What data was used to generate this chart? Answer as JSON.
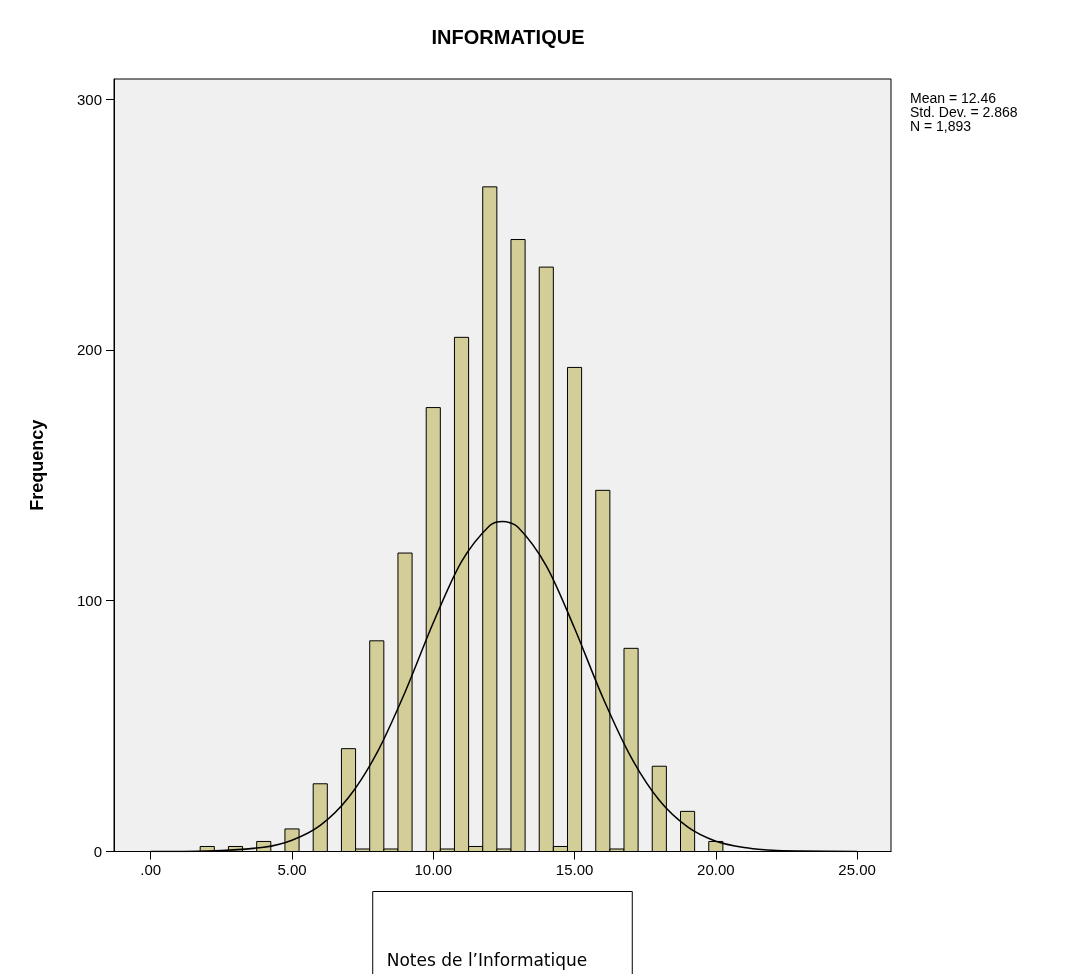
{
  "chart_data": {
    "type": "histogram",
    "title": "INFORMATIQUE",
    "xlabel": "Notes de l’Informatique",
    "ylabel": "Frequency",
    "bins": [
      1.75,
      2.25,
      2.75,
      3.25,
      3.75,
      4.25,
      4.75,
      5.25,
      5.75,
      6.25,
      6.75,
      7.25,
      7.75,
      8.25,
      8.75,
      9.25,
      9.75,
      10.25,
      10.75,
      11.25,
      11.75,
      12.25,
      12.75,
      13.25,
      13.75,
      14.25,
      14.75,
      15.25,
      15.75,
      16.25,
      16.75,
      17.25,
      17.75,
      18.25,
      18.75,
      19.25,
      19.75,
      20.25
    ],
    "values": [
      2,
      0,
      2,
      0,
      4,
      0,
      9,
      0,
      27,
      0,
      41,
      1,
      84,
      1,
      119,
      0,
      177,
      1,
      205,
      2,
      265,
      1,
      244,
      0,
      233,
      2,
      193,
      0,
      144,
      1,
      81,
      0,
      34,
      0,
      16,
      0,
      4
    ],
    "color": "#d3ce97",
    "series": [
      {
        "type": "line",
        "color": "#000000",
        "x": [
          0,
          2,
          4,
          5,
          6,
          7,
          8,
          9,
          10,
          11,
          12,
          12.46,
          13,
          14,
          15,
          16,
          17,
          18,
          19,
          20,
          21,
          22,
          23,
          25
        ],
        "values": [
          0,
          0.2,
          1.7,
          4.5,
          10.4,
          21.5,
          39.2,
          63.5,
          91.2,
          115.6,
          130,
          131.6,
          129.3,
          113.9,
          89,
          61.4,
          37.6,
          20.4,
          9.8,
          4.1,
          1.6,
          0.5,
          0.2,
          0
        ]
      }
    ],
    "xlim": [
      -1.3,
      26.2
    ],
    "ylim": [
      0,
      308
    ],
    "xticks": [
      {
        "value": 0,
        "label": ".00"
      },
      {
        "value": 5,
        "label": "5.00"
      },
      {
        "value": 10,
        "label": "10.00"
      },
      {
        "value": 15,
        "label": "15.00"
      },
      {
        "value": 20,
        "label": "20.00"
      },
      {
        "value": 25,
        "label": "25.00"
      }
    ],
    "yticks": [
      0,
      100,
      200,
      300
    ],
    "annotations": [
      "Mean = 12.46",
      "Std. Dev. = 2.868",
      "N = 1,893"
    ],
    "grid": false,
    "marker": "none",
    "line_style": "solid"
  }
}
